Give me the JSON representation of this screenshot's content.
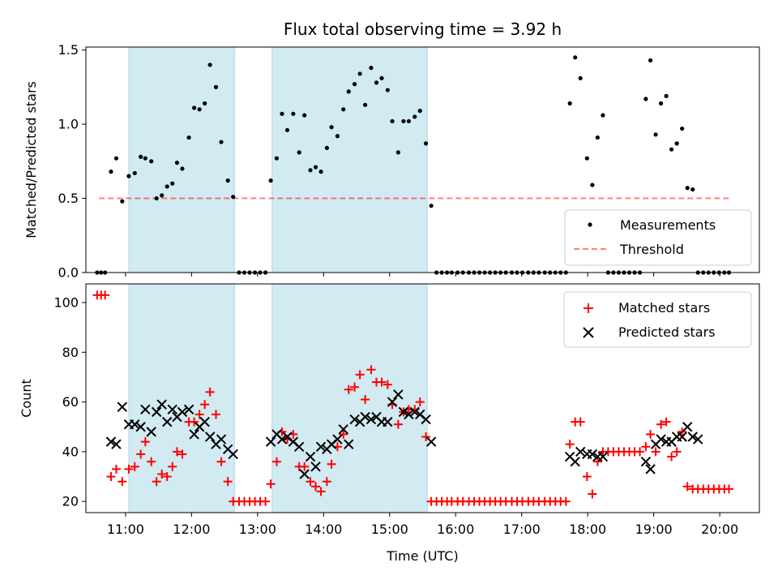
{
  "figure": {
    "title": "Flux total observing time = 3.92 h"
  },
  "chart_data": [
    {
      "type": "scatter",
      "ylabel": "Matched/Predicted stars",
      "xlim": [
        10.4,
        20.6
      ],
      "ylim": [
        0,
        1.52
      ],
      "yticks": [
        0.0,
        0.5,
        1.0,
        1.5
      ],
      "ytick_labels": [
        "0.0",
        "0.5",
        "1.0",
        "1.5"
      ],
      "shaded_spans": [
        [
          11.05,
          12.65
        ],
        [
          13.22,
          15.57
        ]
      ],
      "shade_color": "#add8e6",
      "legend": {
        "position": "lower-right",
        "measurements_label": "Measurements",
        "threshold_label": "Threshold"
      },
      "threshold": {
        "y": 0.5,
        "x_range": [
          10.6,
          20.15
        ],
        "color": "#ff0000"
      },
      "series": [
        {
          "name": "Measurements",
          "color": "#000000",
          "x": [
            10.57,
            10.63,
            10.69,
            10.78,
            10.86,
            10.95,
            11.05,
            11.14,
            11.23,
            11.3,
            11.39,
            11.47,
            11.55,
            11.63,
            11.71,
            11.78,
            11.86,
            11.96,
            12.04,
            12.12,
            12.2,
            12.28,
            12.37,
            12.45,
            12.55,
            12.63,
            12.72,
            12.8,
            12.88,
            12.96,
            13.04,
            13.12,
            13.2,
            13.29,
            13.37,
            13.45,
            13.54,
            13.63,
            13.71,
            13.8,
            13.88,
            13.96,
            14.05,
            14.12,
            14.21,
            14.3,
            14.38,
            14.47,
            14.55,
            14.63,
            14.72,
            14.8,
            14.88,
            14.97,
            15.04,
            15.13,
            15.21,
            15.29,
            15.38,
            15.46,
            15.55,
            15.63,
            15.71,
            15.79,
            15.87,
            15.94,
            16.03,
            16.11,
            16.2,
            16.28,
            16.36,
            16.44,
            16.52,
            16.6,
            16.68,
            16.76,
            16.85,
            16.93,
            17.01,
            17.1,
            17.18,
            17.26,
            17.35,
            17.43,
            17.51,
            17.59,
            17.67,
            17.73,
            17.81,
            17.89,
            17.99,
            18.07,
            18.15,
            18.23,
            18.31,
            18.39,
            18.47,
            18.55,
            18.63,
            18.71,
            18.79,
            18.88,
            18.95,
            19.03,
            19.11,
            19.19,
            19.27,
            19.35,
            19.43,
            19.51,
            19.59,
            19.67,
            19.75,
            19.83,
            19.91,
            19.99,
            20.07,
            20.14
          ],
          "y": [
            0.0,
            0.0,
            0.0,
            0.68,
            0.77,
            0.48,
            0.65,
            0.67,
            0.78,
            0.77,
            0.75,
            0.5,
            0.52,
            0.58,
            0.6,
            0.74,
            0.7,
            0.91,
            1.11,
            1.1,
            1.14,
            1.4,
            1.25,
            0.88,
            0.62,
            0.51,
            0.0,
            0.0,
            0.0,
            0.0,
            0.0,
            0.0,
            0.62,
            0.77,
            1.07,
            0.96,
            1.07,
            0.81,
            1.06,
            0.69,
            0.71,
            0.68,
            0.84,
            0.98,
            0.92,
            1.1,
            1.22,
            1.27,
            1.34,
            1.13,
            1.38,
            1.28,
            1.31,
            1.23,
            1.02,
            0.81,
            1.02,
            1.02,
            1.05,
            1.09,
            0.87,
            0.45,
            0.0,
            0.0,
            0.0,
            0.0,
            0.0,
            0.0,
            0.0,
            0.0,
            0.0,
            0.0,
            0.0,
            0.0,
            0.0,
            0.0,
            0.0,
            0.0,
            0.0,
            0.0,
            0.0,
            0.0,
            0.0,
            0.0,
            0.0,
            0.0,
            0.0,
            1.14,
            1.45,
            1.31,
            0.77,
            0.59,
            0.91,
            1.06,
            0.0,
            0.0,
            0.0,
            0.0,
            0.0,
            0.0,
            0.0,
            1.17,
            1.43,
            0.93,
            1.14,
            1.19,
            0.83,
            0.87,
            0.97,
            0.57,
            0.56,
            0.0,
            0.0,
            0.0,
            0.0,
            0.0,
            0.0,
            0.0
          ]
        }
      ]
    },
    {
      "type": "scatter",
      "ylabel": "Count",
      "xlabel": "Time (UTC)",
      "xlim": [
        10.4,
        20.6
      ],
      "ylim": [
        15.5,
        107.5
      ],
      "yticks": [
        20,
        40,
        60,
        80,
        100
      ],
      "ytick_labels": [
        "20",
        "40",
        "60",
        "80",
        "100"
      ],
      "xticks": [
        11,
        12,
        13,
        14,
        15,
        16,
        17,
        18,
        19,
        20
      ],
      "xtick_labels": [
        "11:00",
        "12:00",
        "13:00",
        "14:00",
        "15:00",
        "16:00",
        "17:00",
        "18:00",
        "19:00",
        "20:00"
      ],
      "shaded_spans": [
        [
          11.05,
          12.65
        ],
        [
          13.22,
          15.57
        ]
      ],
      "shade_color": "#add8e6",
      "legend": {
        "position": "upper-right",
        "matched_label": "Matched stars",
        "predicted_label": "Predicted stars"
      },
      "series": [
        {
          "name": "Matched stars",
          "marker": "plus",
          "color": "#ff0000",
          "x": [
            10.57,
            10.63,
            10.69,
            10.78,
            10.86,
            10.95,
            11.05,
            11.14,
            11.23,
            11.3,
            11.39,
            11.47,
            11.55,
            11.63,
            11.71,
            11.78,
            11.86,
            11.96,
            12.04,
            12.12,
            12.2,
            12.28,
            12.37,
            12.45,
            12.55,
            12.63,
            12.72,
            12.8,
            12.88,
            12.96,
            13.04,
            13.12,
            13.2,
            13.29,
            13.37,
            13.45,
            13.54,
            13.63,
            13.71,
            13.8,
            13.88,
            13.96,
            14.05,
            14.12,
            14.21,
            14.3,
            14.38,
            14.47,
            14.55,
            14.63,
            14.72,
            14.8,
            14.88,
            14.97,
            15.04,
            15.13,
            15.21,
            15.29,
            15.38,
            15.46,
            15.55,
            15.63,
            15.71,
            15.79,
            15.87,
            15.94,
            16.03,
            16.11,
            16.2,
            16.28,
            16.36,
            16.44,
            16.52,
            16.6,
            16.68,
            16.76,
            16.85,
            16.93,
            17.01,
            17.1,
            17.18,
            17.26,
            17.35,
            17.43,
            17.51,
            17.59,
            17.67,
            17.73,
            17.81,
            17.89,
            17.99,
            18.07,
            18.15,
            18.23,
            18.31,
            18.39,
            18.47,
            18.55,
            18.63,
            18.71,
            18.79,
            18.88,
            18.95,
            19.03,
            19.11,
            19.19,
            19.27,
            19.35,
            19.43,
            19.51,
            19.59,
            19.67,
            19.75,
            19.83,
            19.91,
            19.99,
            20.07,
            20.14
          ],
          "y": [
            103,
            103,
            103,
            30,
            33,
            28,
            33,
            34,
            39,
            44,
            36,
            28,
            31,
            30,
            34,
            40,
            39,
            52,
            52,
            55,
            59,
            64,
            55,
            36,
            28,
            20,
            20,
            20,
            20,
            20,
            20,
            20,
            27,
            36,
            48,
            45,
            47,
            34,
            34,
            28,
            26,
            24,
            28,
            35,
            42,
            47,
            65,
            66,
            71,
            61,
            73,
            68,
            68,
            67,
            59,
            51,
            56,
            57,
            57,
            60,
            46,
            20,
            20,
            20,
            20,
            20,
            20,
            20,
            20,
            20,
            20,
            20,
            20,
            20,
            20,
            20,
            20,
            20,
            20,
            20,
            20,
            20,
            20,
            20,
            20,
            20,
            20,
            43,
            52,
            52,
            30,
            23,
            36,
            40,
            40,
            40,
            40,
            40,
            40,
            40,
            40,
            42,
            47,
            40,
            51,
            52,
            38,
            40,
            48,
            26,
            25,
            25,
            25,
            25,
            25,
            25,
            25,
            25
          ]
        },
        {
          "name": "Predicted stars",
          "marker": "x",
          "color": "#000000",
          "x": [
            10.78,
            10.86,
            10.95,
            11.05,
            11.14,
            11.23,
            11.3,
            11.39,
            11.47,
            11.55,
            11.63,
            11.71,
            11.78,
            11.86,
            11.96,
            12.04,
            12.12,
            12.2,
            12.28,
            12.37,
            12.45,
            12.55,
            12.63,
            13.2,
            13.29,
            13.37,
            13.45,
            13.54,
            13.63,
            13.71,
            13.8,
            13.88,
            13.96,
            14.05,
            14.12,
            14.21,
            14.3,
            14.38,
            14.47,
            14.55,
            14.63,
            14.72,
            14.8,
            14.88,
            14.97,
            15.04,
            15.13,
            15.21,
            15.29,
            15.38,
            15.46,
            15.55,
            15.63,
            17.73,
            17.81,
            17.89,
            17.99,
            18.07,
            18.15,
            18.23,
            18.88,
            18.95,
            19.03,
            19.11,
            19.19,
            19.27,
            19.35,
            19.43,
            19.51,
            19.59,
            19.67
          ],
          "y": [
            44,
            43,
            58,
            51,
            51,
            50,
            57,
            48,
            56,
            59,
            52,
            57,
            54,
            56,
            57,
            47,
            50,
            52,
            46,
            43,
            45,
            41,
            39,
            44,
            47,
            45,
            46,
            44,
            42,
            31,
            38,
            34,
            42,
            41,
            43,
            45,
            49,
            43,
            53,
            52,
            54,
            53,
            54,
            52,
            52,
            60,
            63,
            56,
            55,
            56,
            55,
            53,
            44,
            38,
            36,
            40,
            39,
            39,
            38,
            38,
            36,
            33,
            43,
            45,
            44,
            44,
            46,
            46,
            50,
            46,
            45
          ]
        }
      ]
    }
  ]
}
